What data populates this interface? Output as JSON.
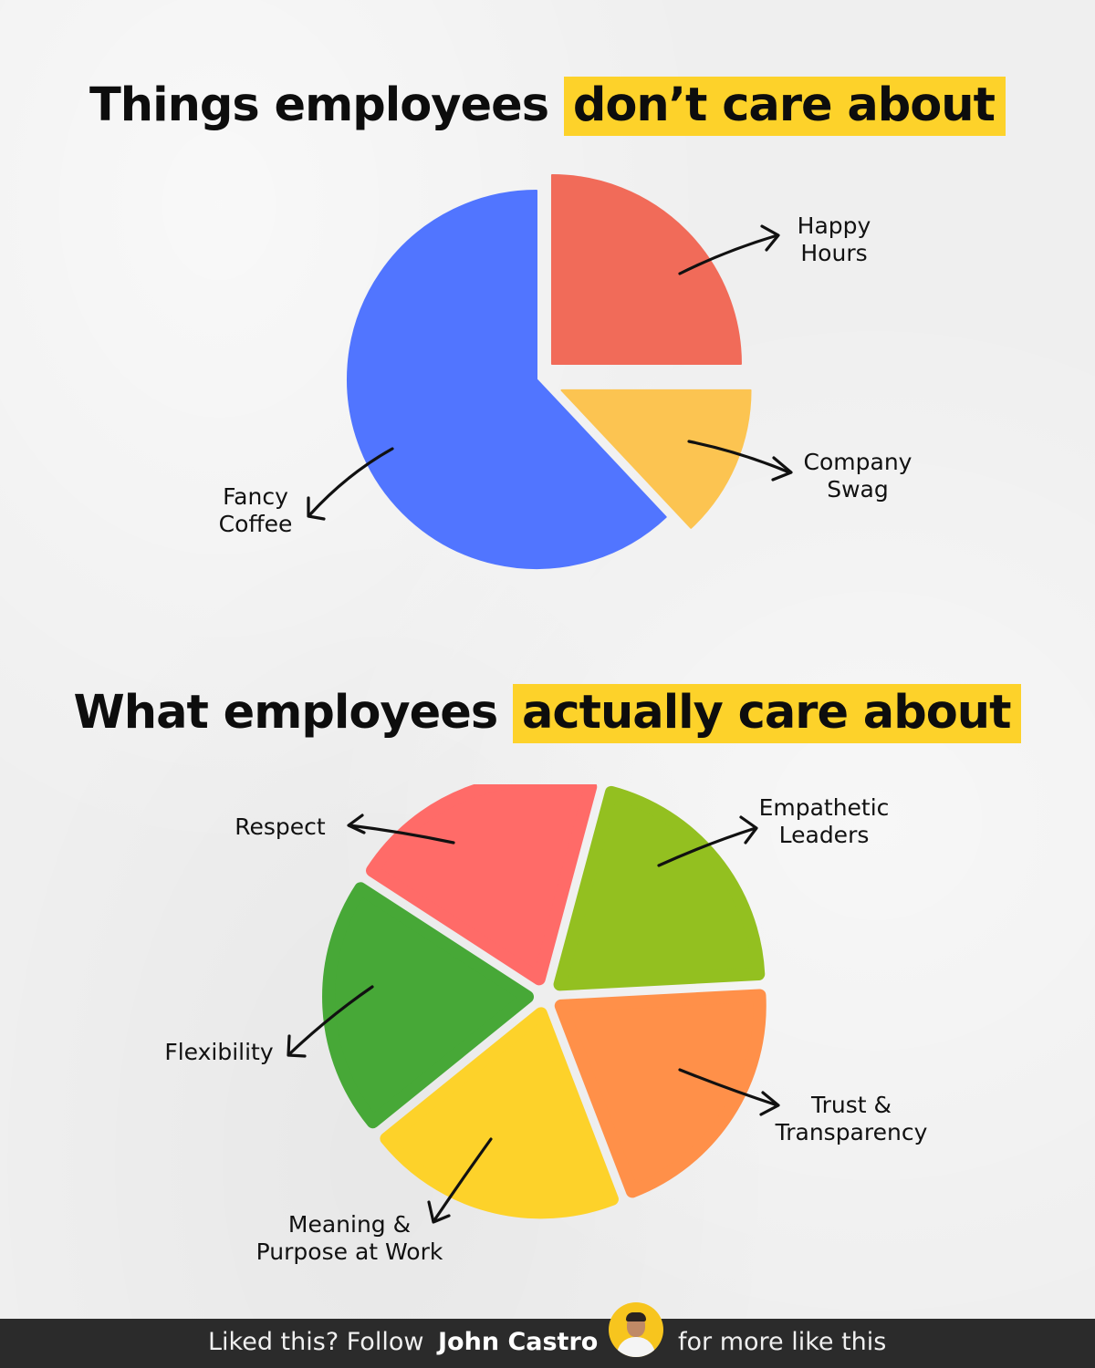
{
  "chart_data": [
    {
      "type": "pie",
      "title_main": "Things employees",
      "title_highlight": "don’t care about",
      "slices": [
        {
          "label": "Happy Hours",
          "value": 25,
          "color": "#f16b59"
        },
        {
          "label": "Company Swag",
          "value": 13,
          "color": "#fcc451"
        },
        {
          "label": "Fancy Coffee",
          "value": 62,
          "color": "#5175ff"
        }
      ],
      "exploded": true,
      "legend": "none"
    },
    {
      "type": "pie",
      "title_main": "What employees",
      "title_highlight": "actually care about",
      "slices": [
        {
          "label": "Empathetic Leaders",
          "value": 20,
          "color": "#93c020"
        },
        {
          "label": "Trust & Transparency",
          "value": 20,
          "color": "#ff9049"
        },
        {
          "label": "Meaning & Purpose at Work",
          "value": 20,
          "color": "#fdd22a"
        },
        {
          "label": "Flexibility",
          "value": 20,
          "color": "#47a837"
        },
        {
          "label": "Respect",
          "value": 20,
          "color": "#ff6b68"
        }
      ],
      "exploded": true,
      "legend": "none"
    }
  ],
  "footer": {
    "prefix": "Liked this? Follow",
    "name": "John Castro",
    "suffix": "for more like this",
    "avatar_icon": "profile-photo"
  }
}
